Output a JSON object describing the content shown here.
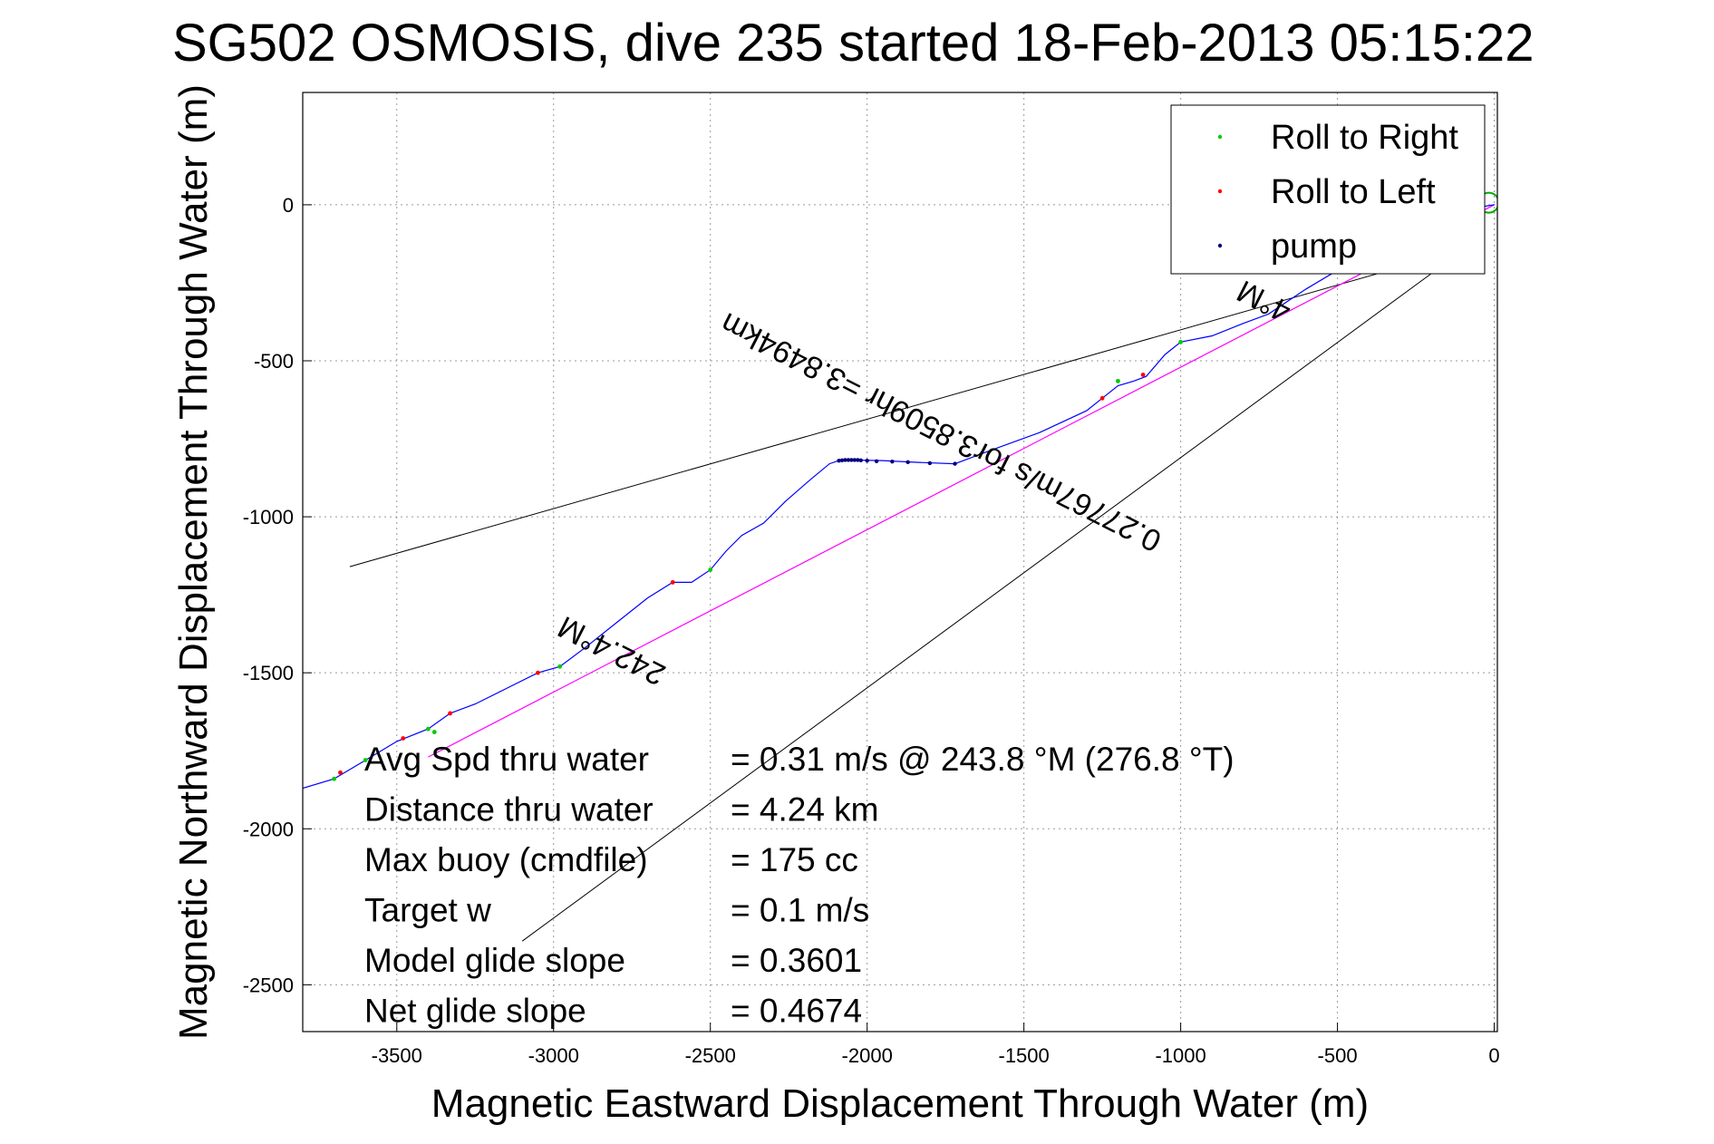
{
  "chart_data": {
    "type": "line",
    "title": "SG502 OSMOSIS, dive 235 started 18-Feb-2013 05:15:22",
    "xlabel": "Magnetic Eastward Displacement Through Water (m)",
    "ylabel": "Magnetic Northward Displacement Through Water (m)",
    "xlim": [
      -3800,
      10
    ],
    "ylim": [
      -2650,
      360
    ],
    "xticks": [
      -3500,
      -3000,
      -2500,
      -2000,
      -1500,
      -1000,
      -500,
      0
    ],
    "yticks": [
      0,
      -500,
      -1000,
      -1500,
      -2000,
      -2500
    ],
    "grid": true,
    "legend_position": "top-right",
    "legend": [
      {
        "name": "Roll to Right",
        "color": "#00cc00"
      },
      {
        "name": "Roll to Left",
        "color": "#ff0000"
      },
      {
        "name": "pump",
        "color": "#000080"
      }
    ],
    "colors": {
      "track": "#0000ff",
      "roll_right": "#00cc00",
      "roll_left": "#ff0000",
      "pump": "#000080",
      "reference_line": "#ff00ff",
      "bounds": "#000000"
    },
    "track": {
      "x": [
        -3800,
        -3700,
        -3600,
        -3500,
        -3400,
        -3330,
        -3250,
        -3150,
        -3050,
        -2980,
        -2900,
        -2800,
        -2700,
        -2620,
        -2560,
        -2500,
        -2450,
        -2400,
        -2330,
        -2260,
        -2180,
        -2120,
        -2090,
        -2060,
        -2040,
        -1950,
        -1850,
        -1720,
        -1600,
        -1450,
        -1300,
        -1250,
        -1200,
        -1150,
        -1110,
        -1050,
        -1000,
        -900,
        -800,
        -720,
        -600,
        -400,
        -200,
        -60,
        0
      ],
      "y": [
        -1870,
        -1840,
        -1780,
        -1720,
        -1680,
        -1630,
        -1600,
        -1550,
        -1500,
        -1480,
        -1420,
        -1340,
        -1260,
        -1210,
        -1210,
        -1170,
        -1110,
        -1060,
        -1020,
        -950,
        -880,
        -830,
        -820,
        -818,
        -818,
        -820,
        -825,
        -830,
        -785,
        -730,
        -660,
        -620,
        -580,
        -565,
        -550,
        -480,
        -440,
        -420,
        -380,
        -350,
        -270,
        -150,
        -60,
        -10,
        0
      ]
    },
    "roll_right": {
      "x": [
        -3700,
        -3600,
        -3400,
        -2980,
        -2500,
        -1200,
        -1000,
        -3380
      ],
      "y": [
        -1840,
        -1780,
        -1680,
        -1480,
        -1170,
        -565,
        -440,
        -1690
      ]
    },
    "roll_left": {
      "x": [
        -3680,
        -3480,
        -3330,
        -3050,
        -2620,
        -1250,
        -1120,
        -40
      ],
      "y": [
        -1820,
        -1710,
        -1630,
        -1500,
        -1210,
        -620,
        -545,
        0
      ]
    },
    "pump": {
      "x": [
        -2090,
        -2080,
        -2070,
        -2060,
        -2050,
        -2040,
        -2030,
        -2020,
        -2000,
        -1970,
        -1920,
        -1870,
        -1800,
        -1720
      ],
      "y": [
        -820,
        -819,
        -818,
        -818,
        -818,
        -818,
        -818,
        -819,
        -820,
        -822,
        -823,
        -825,
        -828,
        -830
      ]
    },
    "start_marker": {
      "x": 0,
      "y": 30,
      "color": "#00aa00"
    },
    "reference_line": {
      "x": [
        -3400,
        0
      ],
      "y": [
        -1770,
        0
      ]
    },
    "bound_lines": [
      {
        "x": [
          -3650,
          -300
        ],
        "y": [
          -1160,
          -200
        ]
      },
      {
        "x": [
          -3100,
          -200
        ],
        "y": [
          -2360,
          -220
        ]
      }
    ],
    "annotations": [
      {
        "text": "0.27767m/s for3.8509hr =3.8494km",
        "x": -1750,
        "y": -700,
        "angle": 207
      },
      {
        "text": "242.4°M",
        "x": -2800,
        "y": -1400,
        "angle": 207
      },
      {
        "text": "4°M",
        "x": -720,
        "y": -280,
        "angle": 207
      }
    ],
    "stats": [
      {
        "label": "Avg Spd thru water",
        "value": "=  0.31 m/s @ 243.8 °M (276.8 °T)"
      },
      {
        "label": "Distance thru water",
        "value": "=  4.24 km"
      },
      {
        "label": "Max buoy (cmdfile)",
        "value": "= 175 cc"
      },
      {
        "label": "Target w",
        "value": "= 0.1 m/s"
      },
      {
        "label": "Model glide slope",
        "value": "= 0.3601"
      },
      {
        "label": "Net glide slope",
        "value": "= 0.4674"
      }
    ]
  }
}
